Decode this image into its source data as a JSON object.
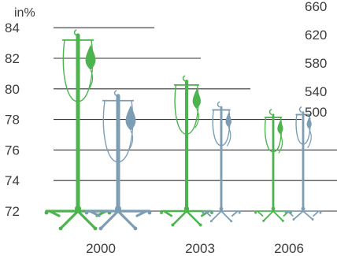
{
  "chart_data": {
    "type": "bar",
    "style": "pictogram (IV drip stands)",
    "categories": [
      "2000",
      "2003",
      "2006"
    ],
    "left_axis": {
      "unit": "in%",
      "ticks": [
        72,
        74,
        76,
        78,
        80,
        82,
        84
      ],
      "range": [
        72,
        84
      ]
    },
    "right_axis": {
      "ticks": [
        500,
        540,
        580,
        620,
        660
      ],
      "range": [
        460,
        660
      ]
    },
    "series": [
      {
        "axis": "left",
        "color": "#4cb34f",
        "values": [
          83.5,
          80.5,
          78.3
        ]
      },
      {
        "axis": "right",
        "color": "#7c9db4",
        "values": [
          570,
          515,
          490
        ]
      }
    ],
    "grid": true
  }
}
